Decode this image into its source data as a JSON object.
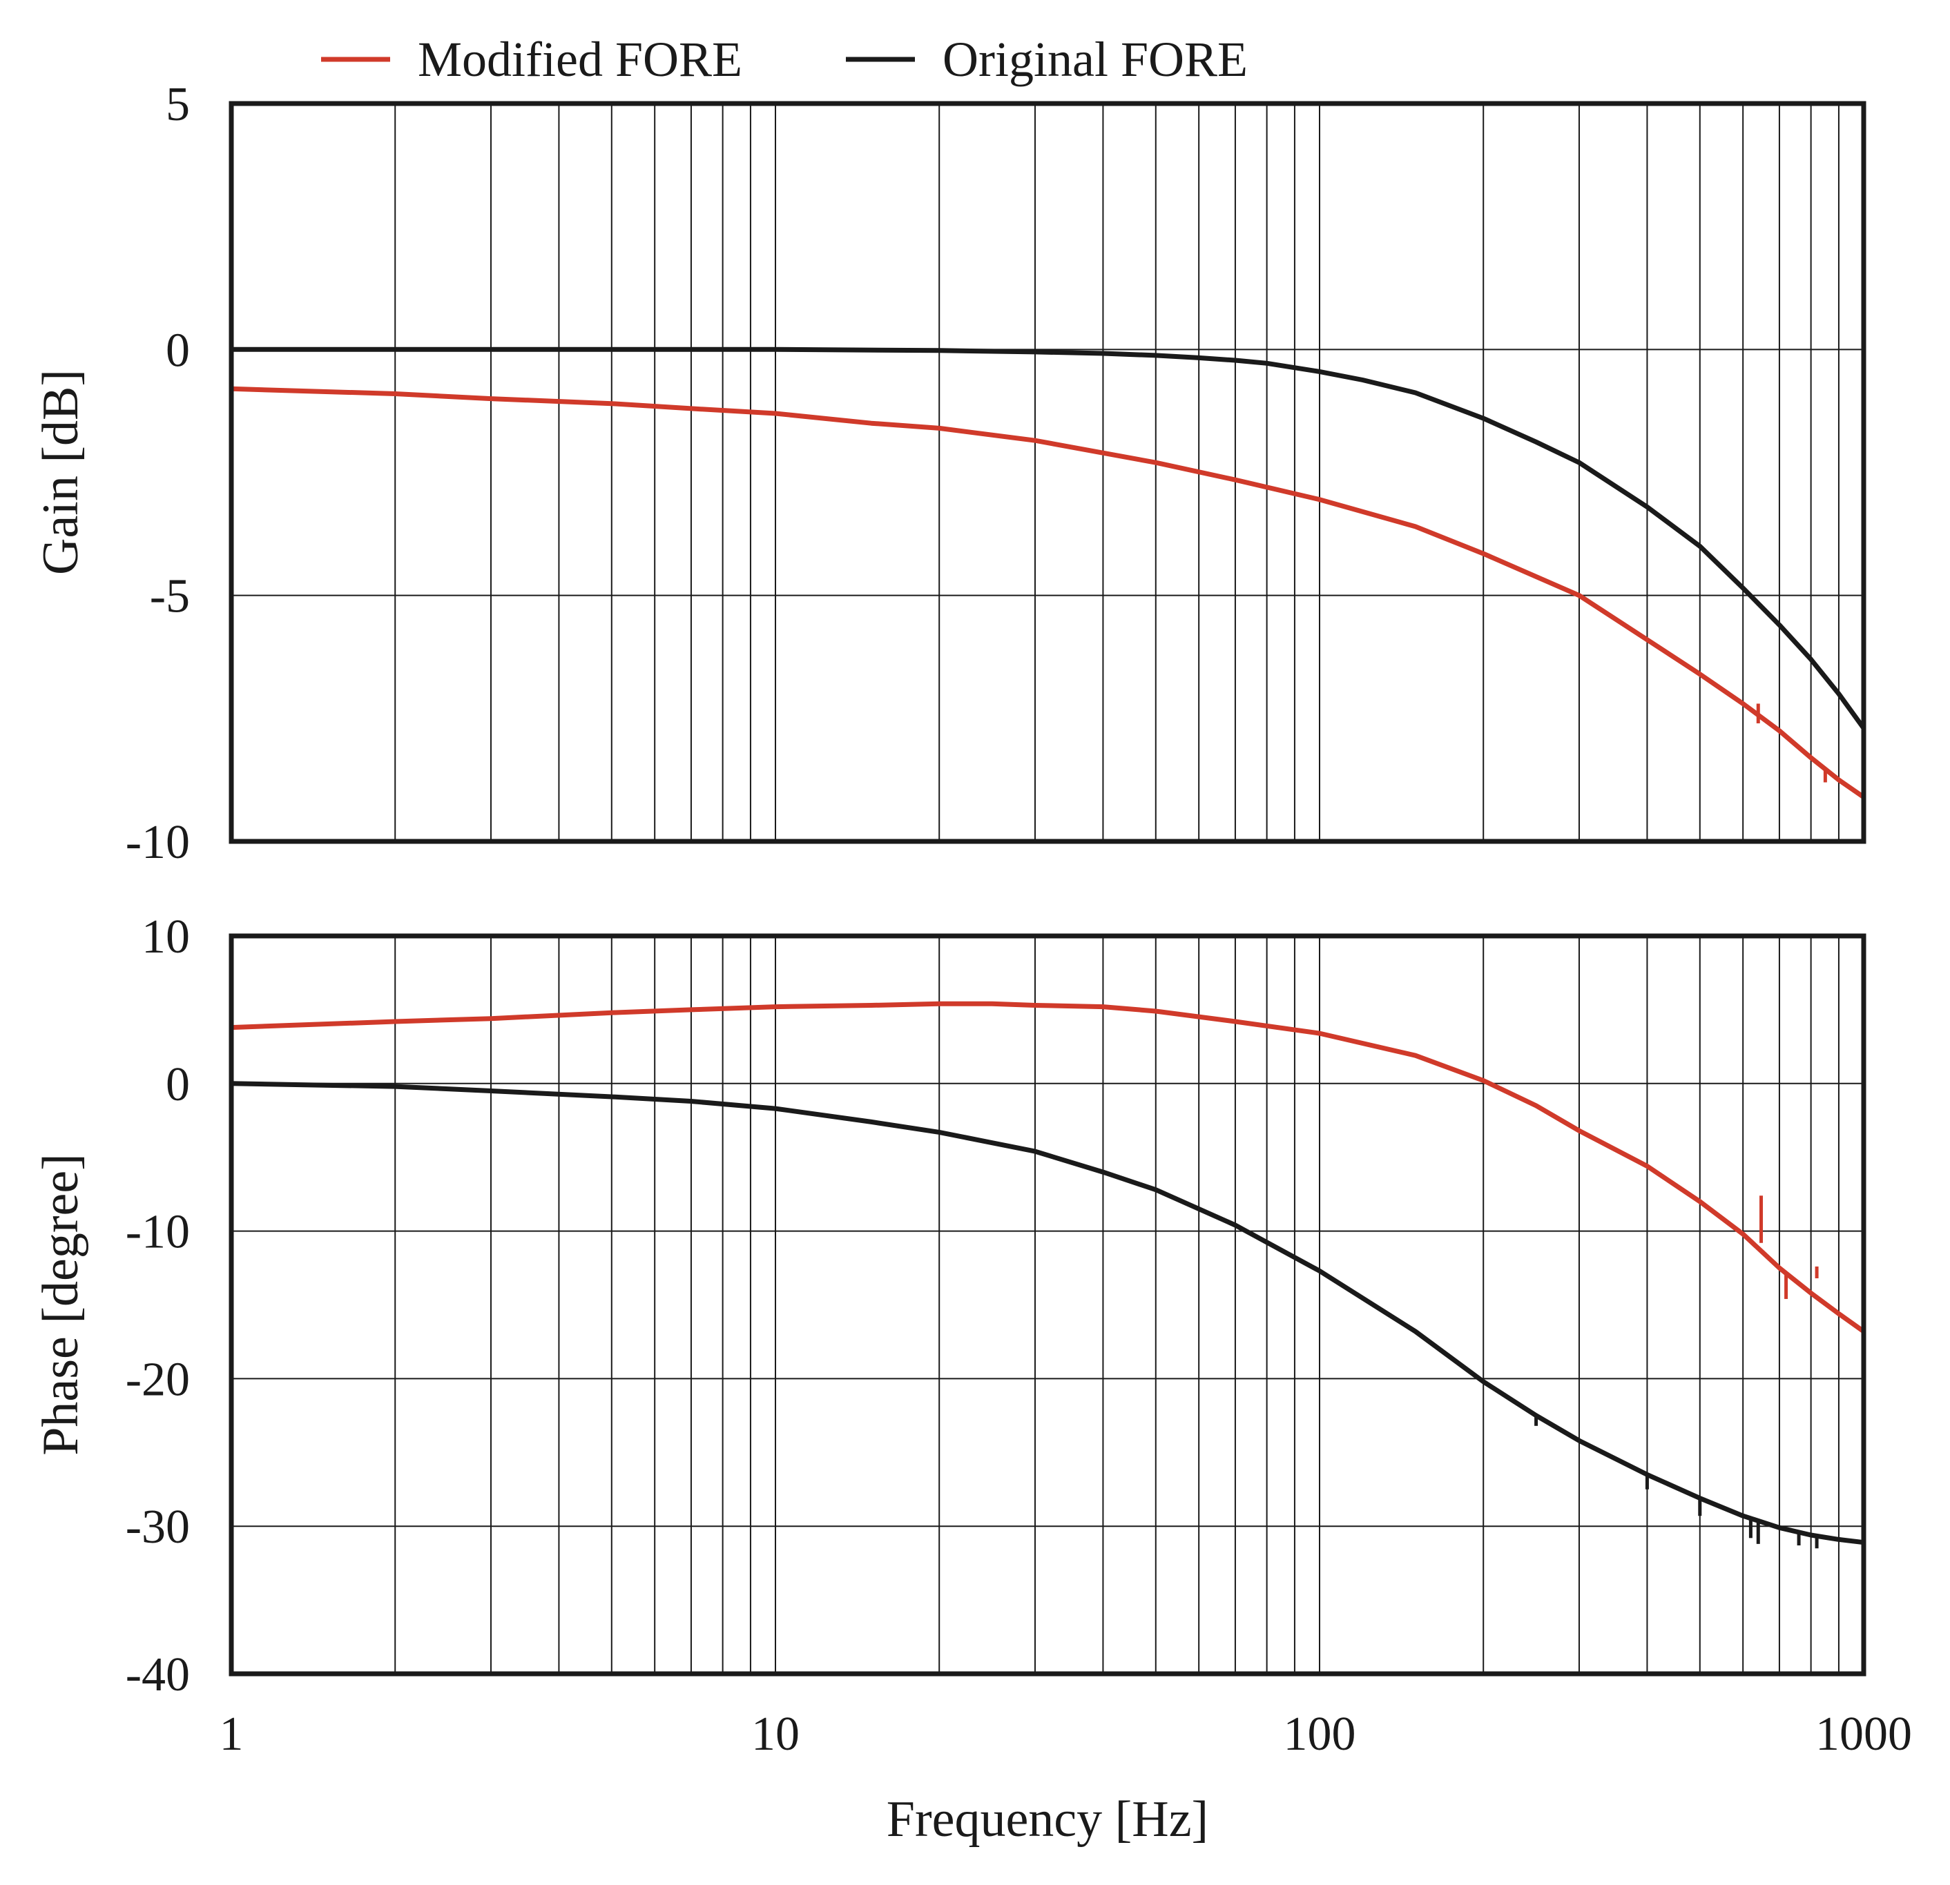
{
  "chart_data": {
    "type": "line",
    "xlabel": "Frequency [Hz]",
    "xscale": "log",
    "xlim": [
      1,
      1000
    ],
    "xticks": [
      1,
      10,
      100,
      1000
    ],
    "xtick_labels": [
      "1",
      "10",
      "100",
      "1000"
    ],
    "legend": {
      "position": "top",
      "entries": [
        {
          "name": "Modified FORE",
          "color": "#d03a2a"
        },
        {
          "name": "Original FORE",
          "color": "#1a1a1a"
        }
      ]
    },
    "grid": true,
    "panels": [
      {
        "id": "gain",
        "ylabel": "Gain [dB]",
        "ylim": [
          -10,
          5
        ],
        "yticks": [
          5,
          0,
          -5,
          -10
        ],
        "ytick_labels": [
          "5",
          "0",
          "-5",
          "-10"
        ],
        "series": [
          {
            "name": "Modified FORE",
            "color": "#d03a2a",
            "x": [
              1,
              2,
              3,
              5,
              7,
              10,
              15,
              20,
              30,
              50,
              70,
              100,
              150,
              200,
              300,
              400,
              500,
              600,
              700,
              800,
              900,
              1000
            ],
            "y": [
              -0.8,
              -0.9,
              -1.0,
              -1.1,
              -1.2,
              -1.3,
              -1.5,
              -1.6,
              -1.85,
              -2.3,
              -2.65,
              -3.05,
              -3.6,
              -4.15,
              -5.0,
              -5.9,
              -6.6,
              -7.2,
              -7.75,
              -8.3,
              -8.75,
              -9.1
            ],
            "spikes": [
              {
                "x": 640,
                "from": -7.2,
                "to": -7.6
              },
              {
                "x": 850,
                "from": -8.5,
                "to": -8.8
              }
            ]
          },
          {
            "name": "Original FORE",
            "color": "#1a1a1a",
            "x": [
              1,
              5,
              10,
              20,
              30,
              40,
              50,
              60,
              70,
              80,
              100,
              120,
              150,
              200,
              250,
              300,
              400,
              500,
              600,
              700,
              800,
              900,
              1000
            ],
            "y": [
              0,
              0,
              0,
              -0.02,
              -0.05,
              -0.08,
              -0.12,
              -0.17,
              -0.22,
              -0.28,
              -0.45,
              -0.62,
              -0.88,
              -1.4,
              -1.88,
              -2.3,
              -3.2,
              -4.0,
              -4.85,
              -5.6,
              -6.3,
              -7.0,
              -7.7
            ]
          }
        ]
      },
      {
        "id": "phase",
        "ylabel": "Phase [degree]",
        "ylim": [
          -40,
          10
        ],
        "yticks": [
          10,
          0,
          -10,
          -20,
          -30,
          -40
        ],
        "ytick_labels": [
          "10",
          "0",
          "-10",
          "-20",
          "-30",
          "-40"
        ],
        "series": [
          {
            "name": "Modified FORE",
            "color": "#d03a2a",
            "x": [
              1,
              2,
              3,
              5,
              7,
              10,
              15,
              20,
              25,
              30,
              40,
              50,
              70,
              100,
              150,
              200,
              250,
              300,
              400,
              500,
              600,
              700,
              800,
              900,
              1000
            ],
            "y": [
              3.8,
              4.2,
              4.4,
              4.8,
              5.0,
              5.2,
              5.3,
              5.4,
              5.4,
              5.3,
              5.2,
              4.9,
              4.2,
              3.4,
              1.9,
              0.2,
              -1.5,
              -3.2,
              -5.6,
              -8.0,
              -10.2,
              -12.5,
              -14.2,
              -15.6,
              -16.8
            ],
            "spikes": [
              {
                "x": 648,
                "from": -10.8,
                "to": -7.6
              },
              {
                "x": 720,
                "from": -12.8,
                "to": -14.6
              },
              {
                "x": 820,
                "from": -13.2,
                "to": -12.4
              }
            ]
          },
          {
            "name": "Original FORE",
            "color": "#1a1a1a",
            "x": [
              1,
              2,
              3,
              5,
              7,
              10,
              15,
              20,
              30,
              40,
              50,
              70,
              100,
              150,
              200,
              250,
              300,
              400,
              500,
              600,
              700,
              800,
              900,
              1000
            ],
            "y": [
              0,
              -0.2,
              -0.5,
              -0.9,
              -1.2,
              -1.7,
              -2.6,
              -3.3,
              -4.6,
              -6.0,
              -7.2,
              -9.6,
              -12.7,
              -16.8,
              -20.2,
              -22.5,
              -24.2,
              -26.5,
              -28.1,
              -29.3,
              -30.1,
              -30.6,
              -30.9,
              -31.1
            ],
            "spikes": [
              {
                "x": 250,
                "from": -22.5,
                "to": -23.2
              },
              {
                "x": 400,
                "from": -26.5,
                "to": -27.5
              },
              {
                "x": 500,
                "from": -28.1,
                "to": -29.3
              },
              {
                "x": 620,
                "from": -29.4,
                "to": -30.8
              },
              {
                "x": 640,
                "from": -29.5,
                "to": -31.2
              },
              {
                "x": 760,
                "from": -30.3,
                "to": -31.3
              },
              {
                "x": 820,
                "from": -30.6,
                "to": -31.5
              }
            ]
          }
        ]
      }
    ]
  }
}
